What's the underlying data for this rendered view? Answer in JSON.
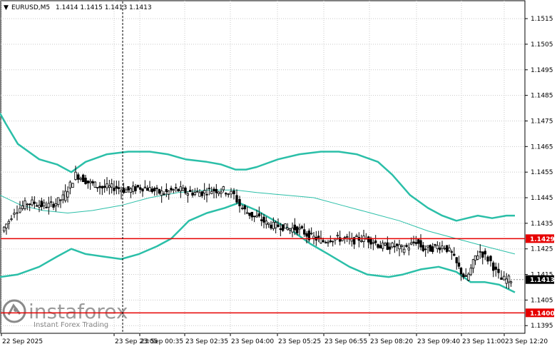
{
  "header": {
    "arrow": "▼",
    "symbol_tf": "EURUSD,M5",
    "ohlc": "1.1414 1.1415 1.1413 1.1413"
  },
  "watermark": {
    "brand": "instaforex",
    "tagline": "Instant Forex Trading"
  },
  "colors": {
    "band": "#2bbfa8",
    "middle": "#2bbfa8",
    "level": "#e60000",
    "candle": "#000000",
    "grid": "#c8c8c8"
  },
  "chart_data": {
    "type": "candlestick",
    "symbol": "EURUSD",
    "timeframe": "M5",
    "ylim": [
      1.1392,
      1.1522
    ],
    "y_ticks": [
      "1.1515",
      "1.1505",
      "1.1495",
      "1.1485",
      "1.1475",
      "1.1465",
      "1.1455",
      "1.1445",
      "1.1435",
      "1.1425",
      "1.1415",
      "1.1405",
      "1.1395"
    ],
    "x_ticks": [
      "22 Sep 2025",
      "23 Sep 23:05",
      "23 Sep 00:35",
      "23 Sep 02:35",
      "23 Sep 04:00",
      "23 Sep 05:25",
      "23 Sep 06:55",
      "23 Sep 08:20",
      "23 Sep 09:40",
      "23 Sep 11:00",
      "23 Sep 12:20"
    ],
    "levels": [
      {
        "label": "1.1429",
        "value": 1.1429
      },
      {
        "label": "1.1400",
        "value": 1.14
      }
    ],
    "current_price": {
      "label": "1.1413",
      "value": 1.1413
    },
    "bollinger_upper": [
      [
        0,
        1.1478
      ],
      [
        8,
        1.1474
      ],
      [
        25,
        1.1466
      ],
      [
        55,
        1.146
      ],
      [
        80,
        1.1458
      ],
      [
        100,
        1.1455
      ],
      [
        120,
        1.1459
      ],
      [
        150,
        1.1462
      ],
      [
        180,
        1.1463
      ],
      [
        210,
        1.1463
      ],
      [
        235,
        1.1462
      ],
      [
        260,
        1.146
      ],
      [
        290,
        1.1459
      ],
      [
        310,
        1.1458
      ],
      [
        330,
        1.1456
      ],
      [
        345,
        1.1456
      ],
      [
        360,
        1.1457
      ],
      [
        390,
        1.146
      ],
      [
        420,
        1.1462
      ],
      [
        450,
        1.1463
      ],
      [
        475,
        1.1463
      ],
      [
        500,
        1.1462
      ],
      [
        530,
        1.1459
      ],
      [
        550,
        1.1454
      ],
      [
        575,
        1.1446
      ],
      [
        600,
        1.1441
      ],
      [
        620,
        1.1438
      ],
      [
        640,
        1.1436
      ],
      [
        655,
        1.1437
      ],
      [
        670,
        1.1438
      ],
      [
        690,
        1.1437
      ],
      [
        710,
        1.1438
      ],
      [
        722,
        1.1438
      ]
    ],
    "bollinger_middle": [
      [
        0,
        1.1446
      ],
      [
        30,
        1.1442
      ],
      [
        60,
        1.144
      ],
      [
        95,
        1.1439
      ],
      [
        130,
        1.144
      ],
      [
        170,
        1.1442
      ],
      [
        210,
        1.1445
      ],
      [
        250,
        1.1447
      ],
      [
        290,
        1.1448
      ],
      [
        330,
        1.1448
      ],
      [
        360,
        1.1447
      ],
      [
        400,
        1.1446
      ],
      [
        440,
        1.1445
      ],
      [
        480,
        1.1442
      ],
      [
        520,
        1.1439
      ],
      [
        560,
        1.1436
      ],
      [
        600,
        1.1432
      ],
      [
        640,
        1.1429
      ],
      [
        680,
        1.1426
      ],
      [
        722,
        1.1423
      ]
    ],
    "bollinger_lower": [
      [
        0,
        1.1414
      ],
      [
        25,
        1.1415
      ],
      [
        55,
        1.1418
      ],
      [
        80,
        1.1422
      ],
      [
        100,
        1.1425
      ],
      [
        120,
        1.1423
      ],
      [
        145,
        1.1422
      ],
      [
        170,
        1.1421
      ],
      [
        195,
        1.1423
      ],
      [
        220,
        1.1426
      ],
      [
        240,
        1.1429
      ],
      [
        265,
        1.1436
      ],
      [
        290,
        1.1439
      ],
      [
        315,
        1.1441
      ],
      [
        335,
        1.1443
      ],
      [
        360,
        1.144
      ],
      [
        385,
        1.1436
      ],
      [
        410,
        1.1432
      ],
      [
        435,
        1.1427
      ],
      [
        460,
        1.1423
      ],
      [
        490,
        1.1418
      ],
      [
        515,
        1.1415
      ],
      [
        545,
        1.1414
      ],
      [
        565,
        1.1415
      ],
      [
        590,
        1.1417
      ],
      [
        615,
        1.1418
      ],
      [
        640,
        1.1416
      ],
      [
        660,
        1.1412
      ],
      [
        680,
        1.1412
      ],
      [
        700,
        1.1411
      ],
      [
        722,
        1.1408
      ]
    ],
    "price_path": [
      [
        4,
        1.1432
      ],
      [
        14,
        1.1436
      ],
      [
        22,
        1.144
      ],
      [
        30,
        1.1441
      ],
      [
        40,
        1.1443
      ],
      [
        50,
        1.1443
      ],
      [
        60,
        1.1442
      ],
      [
        70,
        1.1442
      ],
      [
        80,
        1.1443
      ],
      [
        90,
        1.1445
      ],
      [
        100,
        1.145
      ],
      [
        108,
        1.1454
      ],
      [
        115,
        1.1453
      ],
      [
        125,
        1.1451
      ],
      [
        135,
        1.145
      ],
      [
        145,
        1.1449
      ],
      [
        155,
        1.1449
      ],
      [
        165,
        1.1449
      ],
      [
        175,
        1.1448
      ],
      [
        185,
        1.1448
      ],
      [
        195,
        1.1449
      ],
      [
        205,
        1.1449
      ],
      [
        215,
        1.1448
      ],
      [
        225,
        1.1447
      ],
      [
        235,
        1.1447
      ],
      [
        245,
        1.1448
      ],
      [
        255,
        1.1448
      ],
      [
        265,
        1.1447
      ],
      [
        275,
        1.1447
      ],
      [
        285,
        1.1447
      ],
      [
        295,
        1.1448
      ],
      [
        305,
        1.1448
      ],
      [
        315,
        1.1448
      ],
      [
        322,
        1.1447
      ],
      [
        330,
        1.1446
      ],
      [
        338,
        1.1442
      ],
      [
        345,
        1.144
      ],
      [
        355,
        1.1438
      ],
      [
        365,
        1.1437
      ],
      [
        375,
        1.1435
      ],
      [
        385,
        1.1434
      ],
      [
        395,
        1.1434
      ],
      [
        405,
        1.1433
      ],
      [
        415,
        1.1433
      ],
      [
        425,
        1.1432
      ],
      [
        435,
        1.143
      ],
      [
        445,
        1.1429
      ],
      [
        455,
        1.1428
      ],
      [
        465,
        1.1429
      ],
      [
        475,
        1.1429
      ],
      [
        485,
        1.1429
      ],
      [
        495,
        1.1428
      ],
      [
        505,
        1.1429
      ],
      [
        515,
        1.1429
      ],
      [
        525,
        1.1428
      ],
      [
        535,
        1.1426
      ],
      [
        545,
        1.1426
      ],
      [
        555,
        1.1426
      ],
      [
        565,
        1.1425
      ],
      [
        575,
        1.1426
      ],
      [
        585,
        1.1428
      ],
      [
        595,
        1.1425
      ],
      [
        605,
        1.1425
      ],
      [
        615,
        1.1426
      ],
      [
        625,
        1.1426
      ],
      [
        635,
        1.1423
      ],
      [
        642,
        1.1419
      ],
      [
        648,
        1.1416
      ],
      [
        655,
        1.1413
      ],
      [
        662,
        1.1417
      ],
      [
        668,
        1.1422
      ],
      [
        675,
        1.1424
      ],
      [
        682,
        1.1422
      ],
      [
        690,
        1.142
      ],
      [
        697,
        1.1416
      ],
      [
        705,
        1.1413
      ],
      [
        712,
        1.1413
      ],
      [
        718,
        1.1413
      ]
    ],
    "crosshair_x_position": 172
  }
}
